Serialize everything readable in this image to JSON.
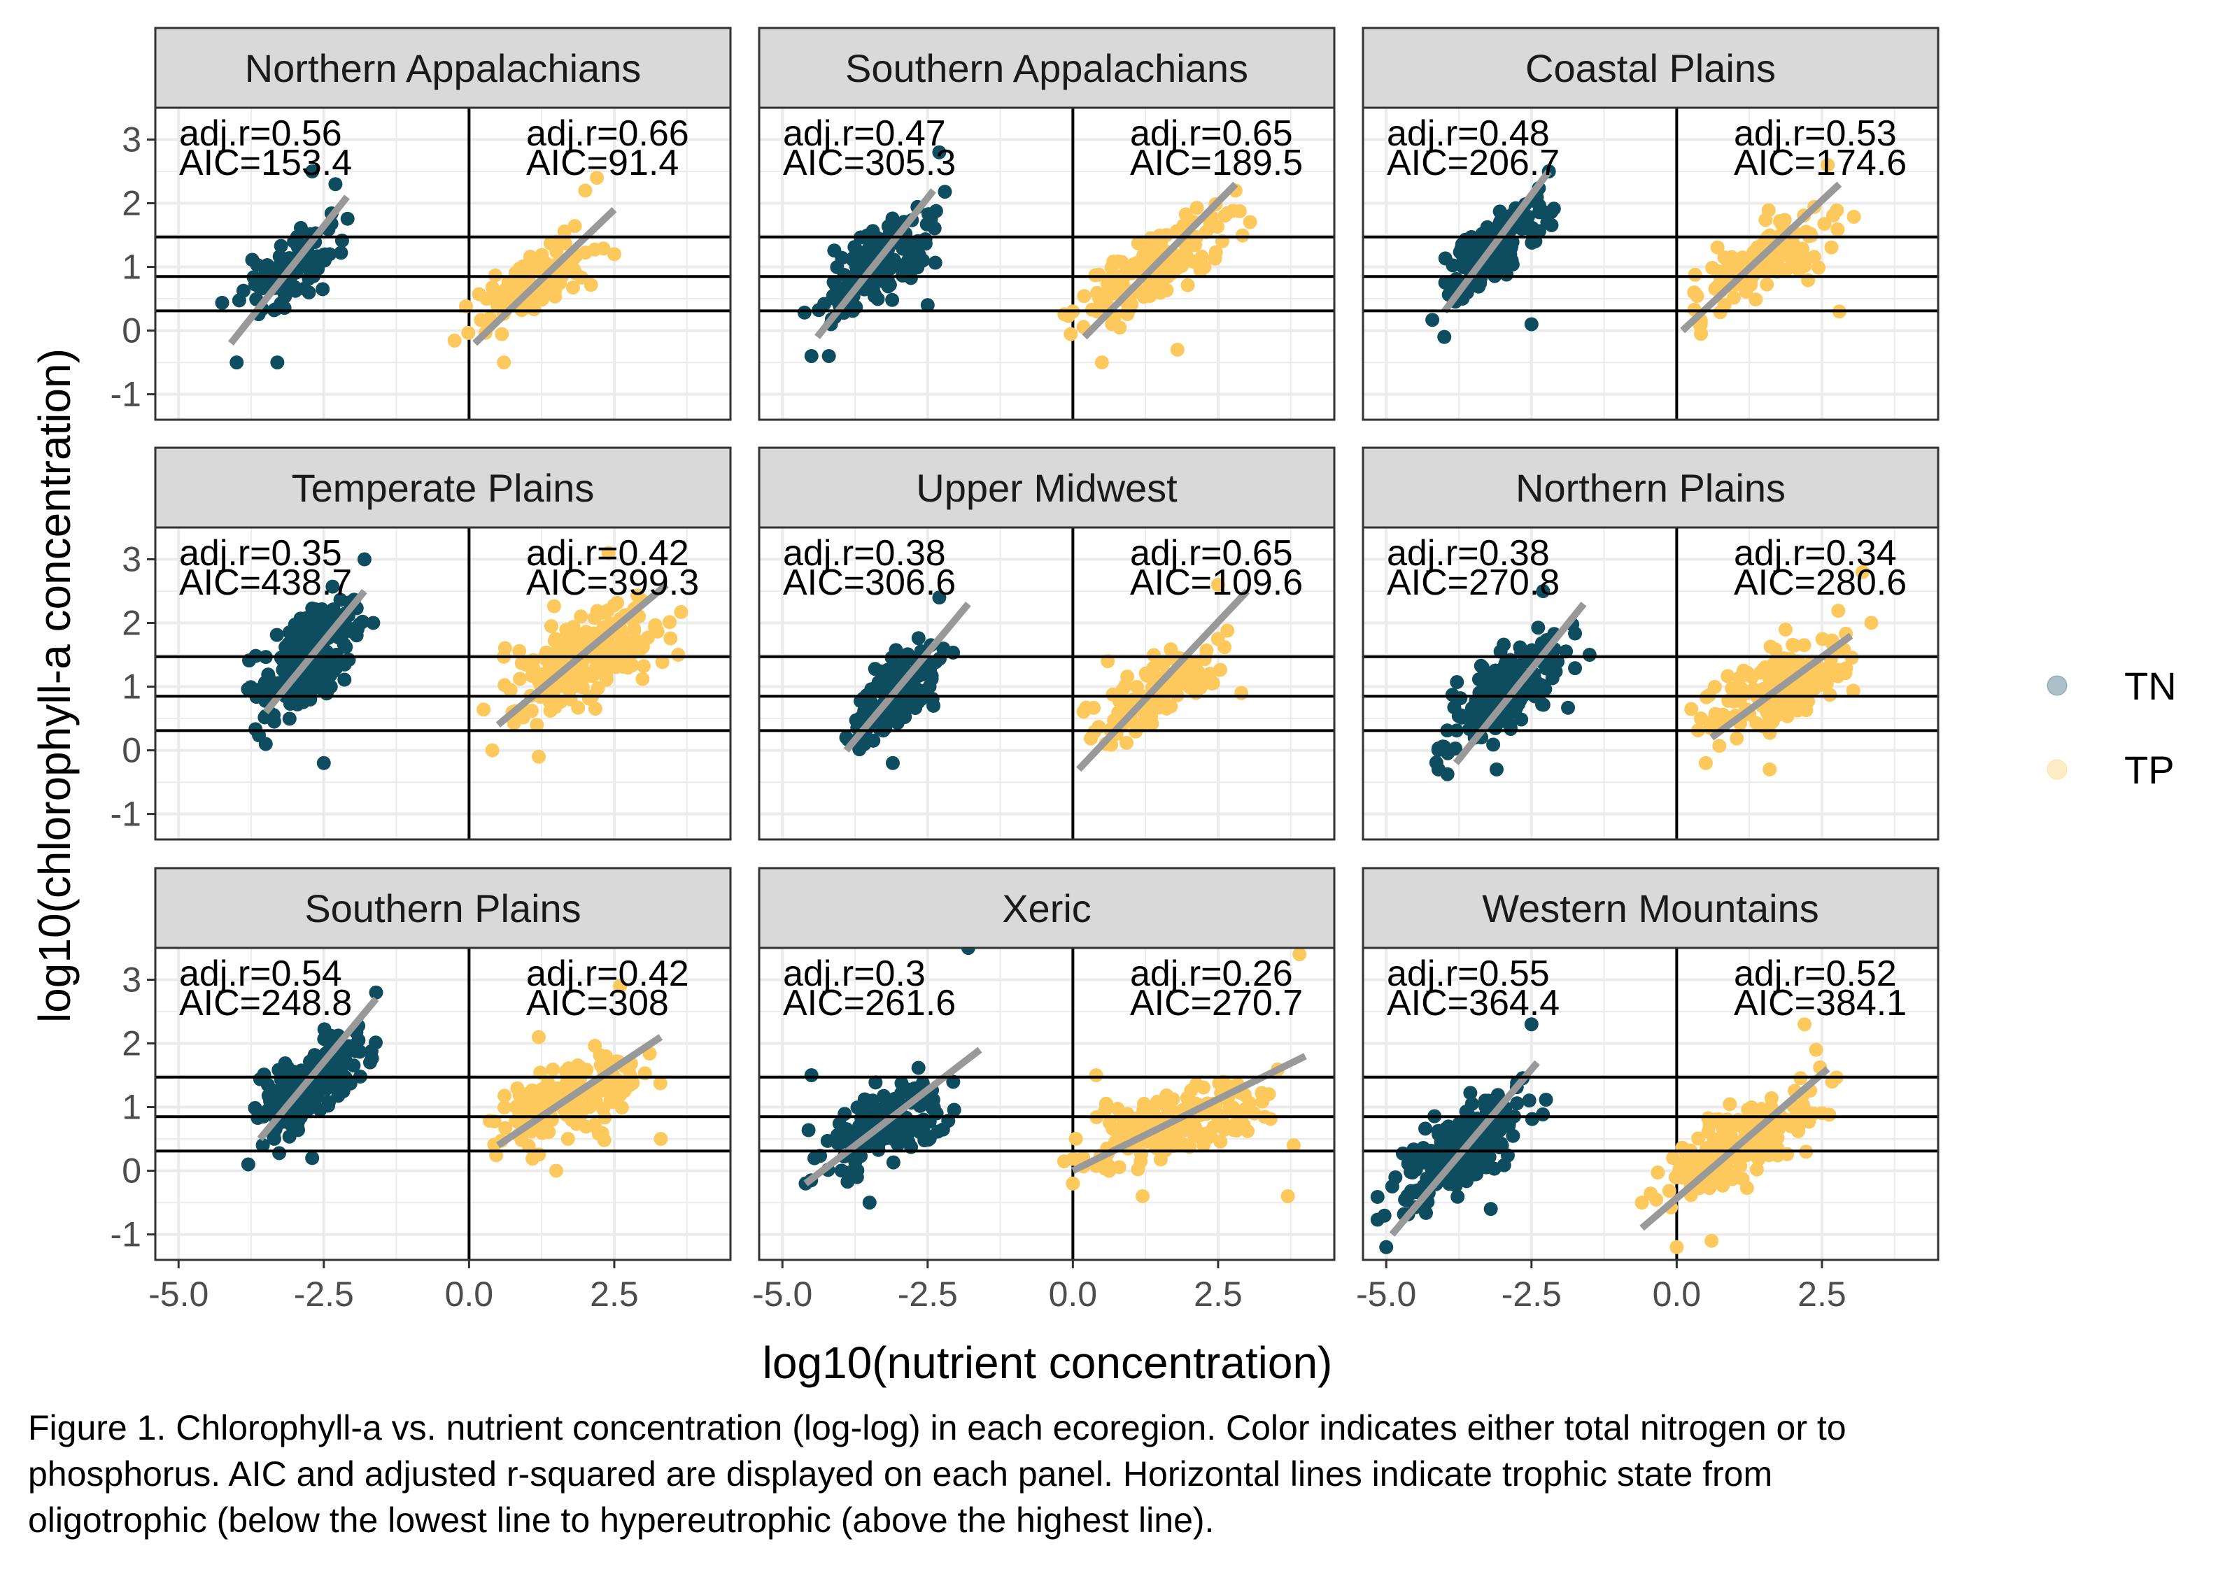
{
  "figure": {
    "caption_lines": [
      "Figure 1. Chlorophyll-a vs. nutrient concentration (log-log) in each ecoregion. Color indicates either total nitrogen or to",
      "phosphorus. AIC and adjusted r-squared are displayed on each panel. Horizontal lines indicate trophic state from",
      "oligotrophic (below the lowest line to hypereutrophic (above the highest line)."
    ]
  },
  "chart_data": {
    "type": "scatter",
    "xlabel": "log10(nutrient concentration)",
    "ylabel": "log10(chlorophyll-a concentration)",
    "xlim": [
      -5.4,
      4.5
    ],
    "ylim": [
      -1.4,
      3.5
    ],
    "x_ticks": [
      -5.0,
      -2.5,
      0.0,
      2.5
    ],
    "x_tick_labels": [
      "-5.0",
      "-2.5",
      "0.0",
      "2.5"
    ],
    "y_ticks": [
      -1,
      0,
      1,
      2,
      3
    ],
    "y_tick_labels": [
      "-1",
      "0",
      "1",
      "2",
      "3"
    ],
    "grid": true,
    "vline_x": 0,
    "trophic_lines_y": [
      0.31,
      0.85,
      1.47
    ],
    "legend": {
      "position": "right",
      "entries": [
        {
          "label": "TN",
          "color": "#0e4d5f"
        },
        {
          "label": "TP",
          "color": "#fdc85c"
        }
      ]
    },
    "colors": {
      "TN": "#0e4d5f",
      "TP": "#fdc85c",
      "fit": "#999999",
      "strip": "#d9d9d9"
    },
    "panels": [
      {
        "name": "Northern Appalachians",
        "TN": {
          "adj_r": "adj.r=0.56",
          "aic": "AIC=153.4",
          "x_range": [
            -4.1,
            -2.1
          ],
          "y_center": 0.9,
          "y_spread": 0.5,
          "n": 90,
          "fit": [
            [
              -4.1,
              -0.2
            ],
            [
              -2.1,
              2.1
            ]
          ],
          "outliers": [
            [
              -2.7,
              2.5
            ],
            [
              -2.3,
              2.3
            ],
            [
              -4.0,
              -0.5
            ],
            [
              -3.3,
              -0.5
            ],
            [
              -2.4,
              1.2
            ]
          ]
        },
        "TP": {
          "adj_r": "adj.r=0.66",
          "aic": "AIC=91.4",
          "x_range": [
            -0.1,
            2.5
          ],
          "y_center": 0.8,
          "y_spread": 0.45,
          "n": 90,
          "fit": [
            [
              0.1,
              -0.2
            ],
            [
              2.5,
              1.9
            ]
          ],
          "outliers": [
            [
              2.2,
              2.4
            ],
            [
              2.5,
              1.2
            ],
            [
              0.6,
              -0.5
            ],
            [
              2.0,
              2.2
            ]
          ]
        }
      },
      {
        "name": "Southern Appalachians",
        "TN": {
          "adj_r": "adj.r=0.47",
          "aic": "AIC=305.3",
          "x_range": [
            -4.5,
            -2.3
          ],
          "y_center": 0.9,
          "y_spread": 0.55,
          "n": 160,
          "fit": [
            [
              -4.4,
              -0.1
            ],
            [
              -2.4,
              2.2
            ]
          ],
          "outliers": [
            [
              -2.3,
              2.8
            ],
            [
              -4.2,
              -0.4
            ],
            [
              -4.5,
              -0.4
            ],
            [
              -2.5,
              0.4
            ]
          ]
        },
        "TP": {
          "adj_r": "adj.r=0.65",
          "aic": "AIC=189.5",
          "x_range": [
            0.0,
            2.9
          ],
          "y_center": 1.0,
          "y_spread": 0.55,
          "n": 150,
          "fit": [
            [
              0.2,
              -0.1
            ],
            [
              2.8,
              2.3
            ]
          ],
          "outliers": [
            [
              0.5,
              -0.5
            ],
            [
              1.8,
              -0.3
            ],
            [
              2.8,
              2.2
            ],
            [
              0.0,
              0.3
            ]
          ]
        }
      },
      {
        "name": "Coastal Plains",
        "TN": {
          "adj_r": "adj.r=0.48",
          "aic": "AIC=206.7",
          "x_range": [
            -4.1,
            -2.1
          ],
          "y_center": 1.15,
          "y_spread": 0.55,
          "n": 150,
          "fit": [
            [
              -4.0,
              0.3
            ],
            [
              -2.2,
              2.5
            ]
          ],
          "outliers": [
            [
              -2.2,
              2.5
            ],
            [
              -2.5,
              0.1
            ],
            [
              -4.0,
              -0.1
            ]
          ]
        },
        "TP": {
          "adj_r": "adj.r=0.53",
          "aic": "AIC=174.6",
          "x_range": [
            0.1,
            2.9
          ],
          "y_center": 1.0,
          "y_spread": 0.5,
          "n": 140,
          "fit": [
            [
              0.1,
              0.0
            ],
            [
              2.8,
              2.3
            ]
          ],
          "outliers": [
            [
              2.6,
              2.6
            ],
            [
              0.3,
              0.6
            ],
            [
              2.8,
              0.3
            ]
          ]
        }
      },
      {
        "name": "Temperate Plains",
        "TN": {
          "adj_r": "adj.r=0.35",
          "aic": "AIC=438.7",
          "x_range": [
            -3.7,
            -1.8
          ],
          "y_center": 1.45,
          "y_spread": 0.7,
          "n": 220,
          "fit": [
            [
              -3.5,
              0.6
            ],
            [
              -1.8,
              2.5
            ]
          ],
          "outliers": [
            [
              -2.5,
              -0.2
            ],
            [
              -3.5,
              0.1
            ],
            [
              -1.8,
              3.0
            ]
          ]
        },
        "TP": {
          "adj_r": "adj.r=0.42",
          "aic": "AIC=399.3",
          "x_range": [
            0.4,
            3.5
          ],
          "y_center": 1.4,
          "y_spread": 0.7,
          "n": 220,
          "fit": [
            [
              0.5,
              0.4
            ],
            [
              3.4,
              2.6
            ]
          ],
          "outliers": [
            [
              0.4,
              0.0
            ],
            [
              1.2,
              -0.1
            ],
            [
              3.6,
              1.5
            ],
            [
              2.4,
              3.1
            ]
          ]
        }
      },
      {
        "name": "Upper Midwest",
        "TN": {
          "adj_r": "adj.r=0.38",
          "aic": "AIC=306.6",
          "x_range": [
            -3.9,
            -2.2
          ],
          "y_center": 0.9,
          "y_spread": 0.55,
          "n": 160,
          "fit": [
            [
              -3.9,
              0.0
            ],
            [
              -1.8,
              2.3
            ]
          ],
          "outliers": [
            [
              -2.3,
              2.4
            ],
            [
              -3.9,
              0.2
            ],
            [
              -3.1,
              -0.2
            ],
            [
              -2.4,
              0.7
            ]
          ]
        },
        "TP": {
          "adj_r": "adj.r=0.65",
          "aic": "AIC=109.6",
          "x_range": [
            0.1,
            2.8
          ],
          "y_center": 0.9,
          "y_spread": 0.5,
          "n": 120,
          "fit": [
            [
              0.1,
              -0.3
            ],
            [
              3.0,
              2.5
            ]
          ],
          "outliers": [
            [
              2.9,
              0.9
            ],
            [
              0.6,
              1.4
            ],
            [
              2.5,
              2.6
            ]
          ]
        }
      },
      {
        "name": "Northern Plains",
        "TN": {
          "adj_r": "adj.r=0.38",
          "aic": "AIC=270.8",
          "x_range": [
            -4.1,
            -1.9
          ],
          "y_center": 1.1,
          "y_spread": 0.6,
          "n": 170,
          "fit": [
            [
              -3.8,
              -0.2
            ],
            [
              -1.6,
              2.3
            ]
          ],
          "outliers": [
            [
              -4.1,
              -0.3
            ],
            [
              -1.5,
              1.5
            ],
            [
              -2.3,
              2.5
            ],
            [
              -3.1,
              -0.3
            ]
          ]
        },
        "TP": {
          "adj_r": "adj.r=0.34",
          "aic": "AIC=280.6",
          "x_range": [
            0.4,
            3.2
          ],
          "y_center": 1.1,
          "y_spread": 0.6,
          "n": 170,
          "fit": [
            [
              0.6,
              0.2
            ],
            [
              3.0,
              1.8
            ]
          ],
          "outliers": [
            [
              1.6,
              -0.3
            ],
            [
              3.2,
              2.8
            ],
            [
              0.5,
              -0.2
            ]
          ]
        }
      },
      {
        "name": "Southern Plains",
        "TN": {
          "adj_r": "adj.r=0.54",
          "aic": "AIC=248.8",
          "x_range": [
            -3.8,
            -1.7
          ],
          "y_center": 1.3,
          "y_spread": 0.6,
          "n": 180,
          "fit": [
            [
              -3.6,
              0.5
            ],
            [
              -1.6,
              2.7
            ]
          ],
          "outliers": [
            [
              -1.6,
              2.8
            ],
            [
              -3.8,
              0.1
            ],
            [
              -2.7,
              0.2
            ]
          ]
        },
        "TP": {
          "adj_r": "adj.r=0.42",
          "aic": "AIC=308",
          "x_range": [
            0.4,
            3.2
          ],
          "y_center": 1.1,
          "y_spread": 0.6,
          "n": 170,
          "fit": [
            [
              0.5,
              0.4
            ],
            [
              3.3,
              2.1
            ]
          ],
          "outliers": [
            [
              2.6,
              2.9
            ],
            [
              3.3,
              0.5
            ],
            [
              1.2,
              2.1
            ],
            [
              1.5,
              0.0
            ]
          ]
        }
      },
      {
        "name": "Xeric",
        "TN": {
          "adj_r": "adj.r=0.3",
          "aic": "AIC=261.6",
          "x_range": [
            -4.4,
            -2.1
          ],
          "y_center": 0.6,
          "y_spread": 0.55,
          "n": 170,
          "fit": [
            [
              -4.6,
              -0.2
            ],
            [
              -1.6,
              1.9
            ]
          ],
          "outliers": [
            [
              -1.8,
              3.5
            ],
            [
              -4.5,
              1.5
            ],
            [
              -3.5,
              -0.5
            ],
            [
              -4.6,
              -0.2
            ]
          ]
        },
        "TP": {
          "adj_r": "adj.r=0.26",
          "aic": "AIC=270.7",
          "x_range": [
            0.0,
            3.5
          ],
          "y_center": 0.7,
          "y_spread": 0.5,
          "n": 170,
          "fit": [
            [
              0.0,
              0.0
            ],
            [
              4.0,
              1.8
            ]
          ],
          "outliers": [
            [
              0.4,
              1.5
            ],
            [
              3.9,
              3.4
            ],
            [
              3.8,
              0.4
            ],
            [
              3.7,
              -0.4
            ],
            [
              1.2,
              -0.4
            ],
            [
              0.0,
              -0.2
            ]
          ]
        }
      },
      {
        "name": "Western Mountains",
        "TN": {
          "adj_r": "adj.r=0.55",
          "aic": "AIC=364.4",
          "x_range": [
            -5.0,
            -2.4
          ],
          "y_center": 0.5,
          "y_spread": 0.6,
          "n": 220,
          "fit": [
            [
              -4.9,
              -1.0
            ],
            [
              -2.4,
              1.7
            ]
          ],
          "outliers": [
            [
              -5.0,
              -1.2
            ],
            [
              -2.5,
              2.3
            ],
            [
              -4.5,
              0.2
            ],
            [
              -3.2,
              -0.6
            ]
          ]
        },
        "TP": {
          "adj_r": "adj.r=0.52",
          "aic": "AIC=384.1",
          "x_range": [
            -0.4,
            2.6
          ],
          "y_center": 0.4,
          "y_spread": 0.55,
          "n": 190,
          "fit": [
            [
              -0.6,
              -0.9
            ],
            [
              2.6,
              1.6
            ]
          ],
          "outliers": [
            [
              2.2,
              2.3
            ],
            [
              -0.6,
              -0.5
            ],
            [
              0.6,
              -1.1
            ],
            [
              2.4,
              1.9
            ],
            [
              0.0,
              -1.2
            ]
          ]
        }
      }
    ]
  }
}
